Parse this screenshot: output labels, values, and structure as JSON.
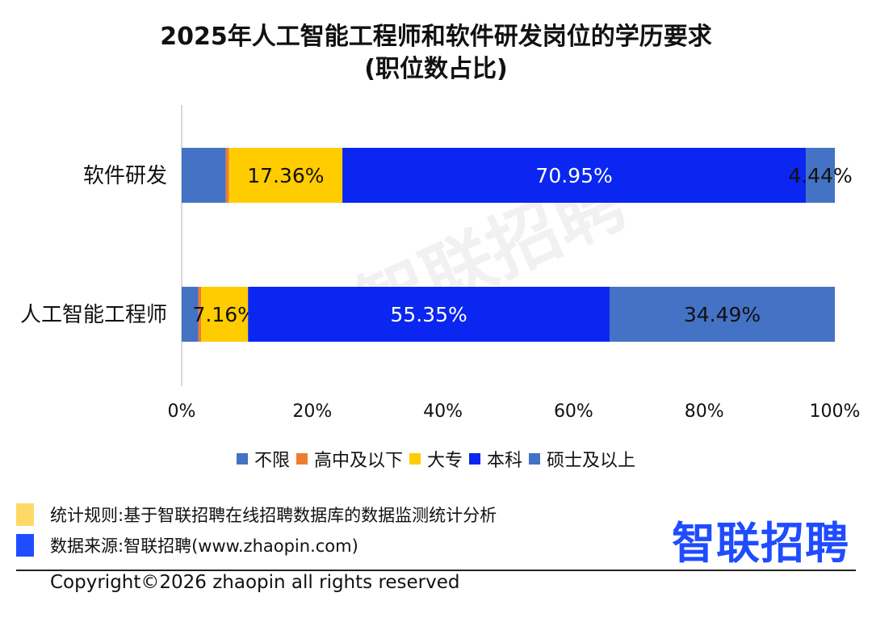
{
  "title_line1": "2025年人工智能工程师和软件研发岗位的学历要求",
  "title_line2": "(职位数占比)",
  "watermark": "智联招聘",
  "chart_data": {
    "type": "bar",
    "orientation": "horizontal-stacked-100",
    "categories": [
      "软件研发",
      "人工智能工程师"
    ],
    "series": [
      {
        "name": "不限",
        "color": "#4472c4",
        "values": [
          6.75,
          2.53
        ]
      },
      {
        "name": "高中及以下",
        "color": "#ed7d31",
        "values": [
          0.5,
          0.47
        ]
      },
      {
        "name": "大专",
        "color": "#ffcc00",
        "values": [
          17.36,
          7.16
        ]
      },
      {
        "name": "本科",
        "color": "#0a26f0",
        "values": [
          70.95,
          55.35
        ]
      },
      {
        "name": "硕士及以上",
        "color": "#4472c4",
        "values": [
          4.44,
          34.49
        ]
      }
    ],
    "data_labels": [
      [
        "",
        "",
        "17.36%",
        "70.95%",
        "4.44%"
      ],
      [
        "",
        "",
        "7.16%",
        "55.35%",
        "34.49%"
      ]
    ],
    "x_ticks": [
      "0%",
      "20%",
      "40%",
      "60%",
      "80%",
      "100%"
    ],
    "xlim": [
      0,
      100
    ],
    "legend_position": "bottom"
  },
  "notes": [
    {
      "text": "统计规则:基于智联招聘在线招聘数据库的数据监测统计分析",
      "color": "#ffd966"
    },
    {
      "text": "数据来源:智联招聘(www.zhaopin.com)",
      "color": "#1f4cff"
    }
  ],
  "brand_logo": "智联招聘",
  "copyright": "Copyright©2026 zhaopin all rights reserved"
}
